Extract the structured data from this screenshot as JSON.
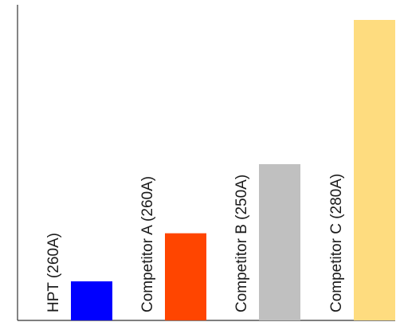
{
  "chart_data": {
    "type": "bar",
    "categories": [
      "HPT (260A)",
      "Competitor A (260A)",
      "Competitor B (250A)",
      "Competitor C (280A)"
    ],
    "values": [
      13,
      29,
      52,
      100
    ],
    "colors": [
      "#0000ff",
      "#ff4500",
      "#c0c0c0",
      "#fedc7f"
    ],
    "ylim": [
      0,
      100
    ],
    "grid": false,
    "title": "",
    "xlabel": "",
    "ylabel": ""
  }
}
